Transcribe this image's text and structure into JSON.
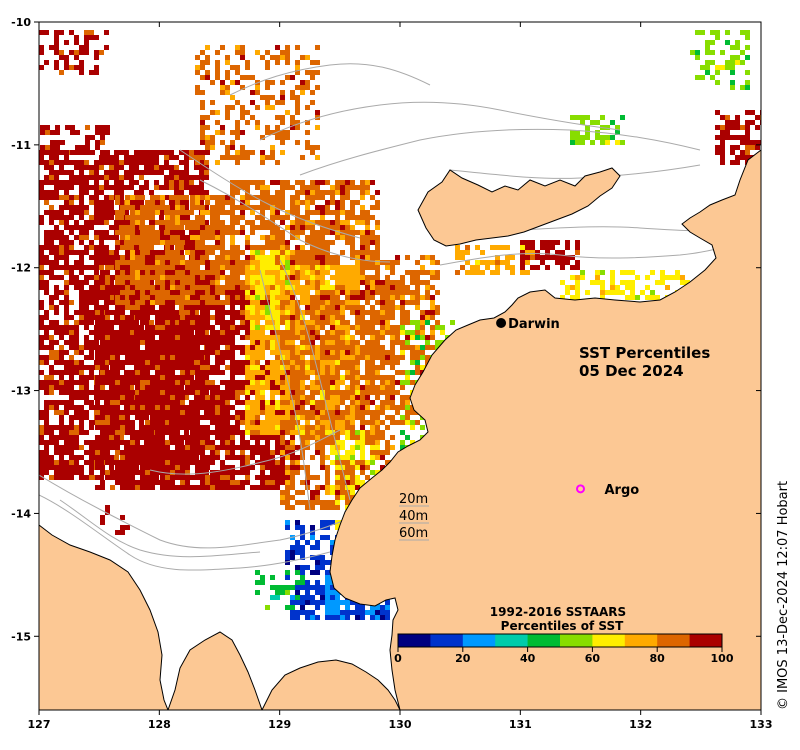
{
  "title": {
    "line1": "SST Percentiles",
    "line2": "05 Dec 2024"
  },
  "axes": {
    "lon_min": 127,
    "lon_max": 133,
    "lat_min": -15.6,
    "lat_max": -10,
    "x_ticks": [
      127,
      128,
      129,
      130,
      131,
      132,
      133
    ],
    "y_ticks": [
      -10,
      -11,
      -12,
      -13,
      -14,
      -15
    ]
  },
  "places": [
    {
      "name": "Darwin",
      "lon": 130.84,
      "lat": -12.45,
      "marker": "dot"
    }
  ],
  "argo": {
    "label": "Argo",
    "lon": 131.5,
    "lat": -13.8,
    "color": "#ff00ff"
  },
  "depth_legend": [
    "20m",
    "40m",
    "60m"
  ],
  "colorbar": {
    "title_line1": "1992-2016 SSTAARS",
    "title_line2": "Percentiles of SST",
    "colors": [
      "#000080",
      "#0033cc",
      "#0099ff",
      "#00ccaa",
      "#00bb33",
      "#88dd00",
      "#ffee00",
      "#ffaa00",
      "#dd6600",
      "#aa0000"
    ],
    "ticks": [
      0,
      20,
      40,
      60,
      80,
      100
    ]
  },
  "colors": {
    "land": "#fcc894",
    "ocean": "#ffffff",
    "bathymetry": "#aaaaaa",
    "coast": "#000000"
  },
  "credit": "© IMOS 13-Dec-2024 12:07 Hobart"
}
